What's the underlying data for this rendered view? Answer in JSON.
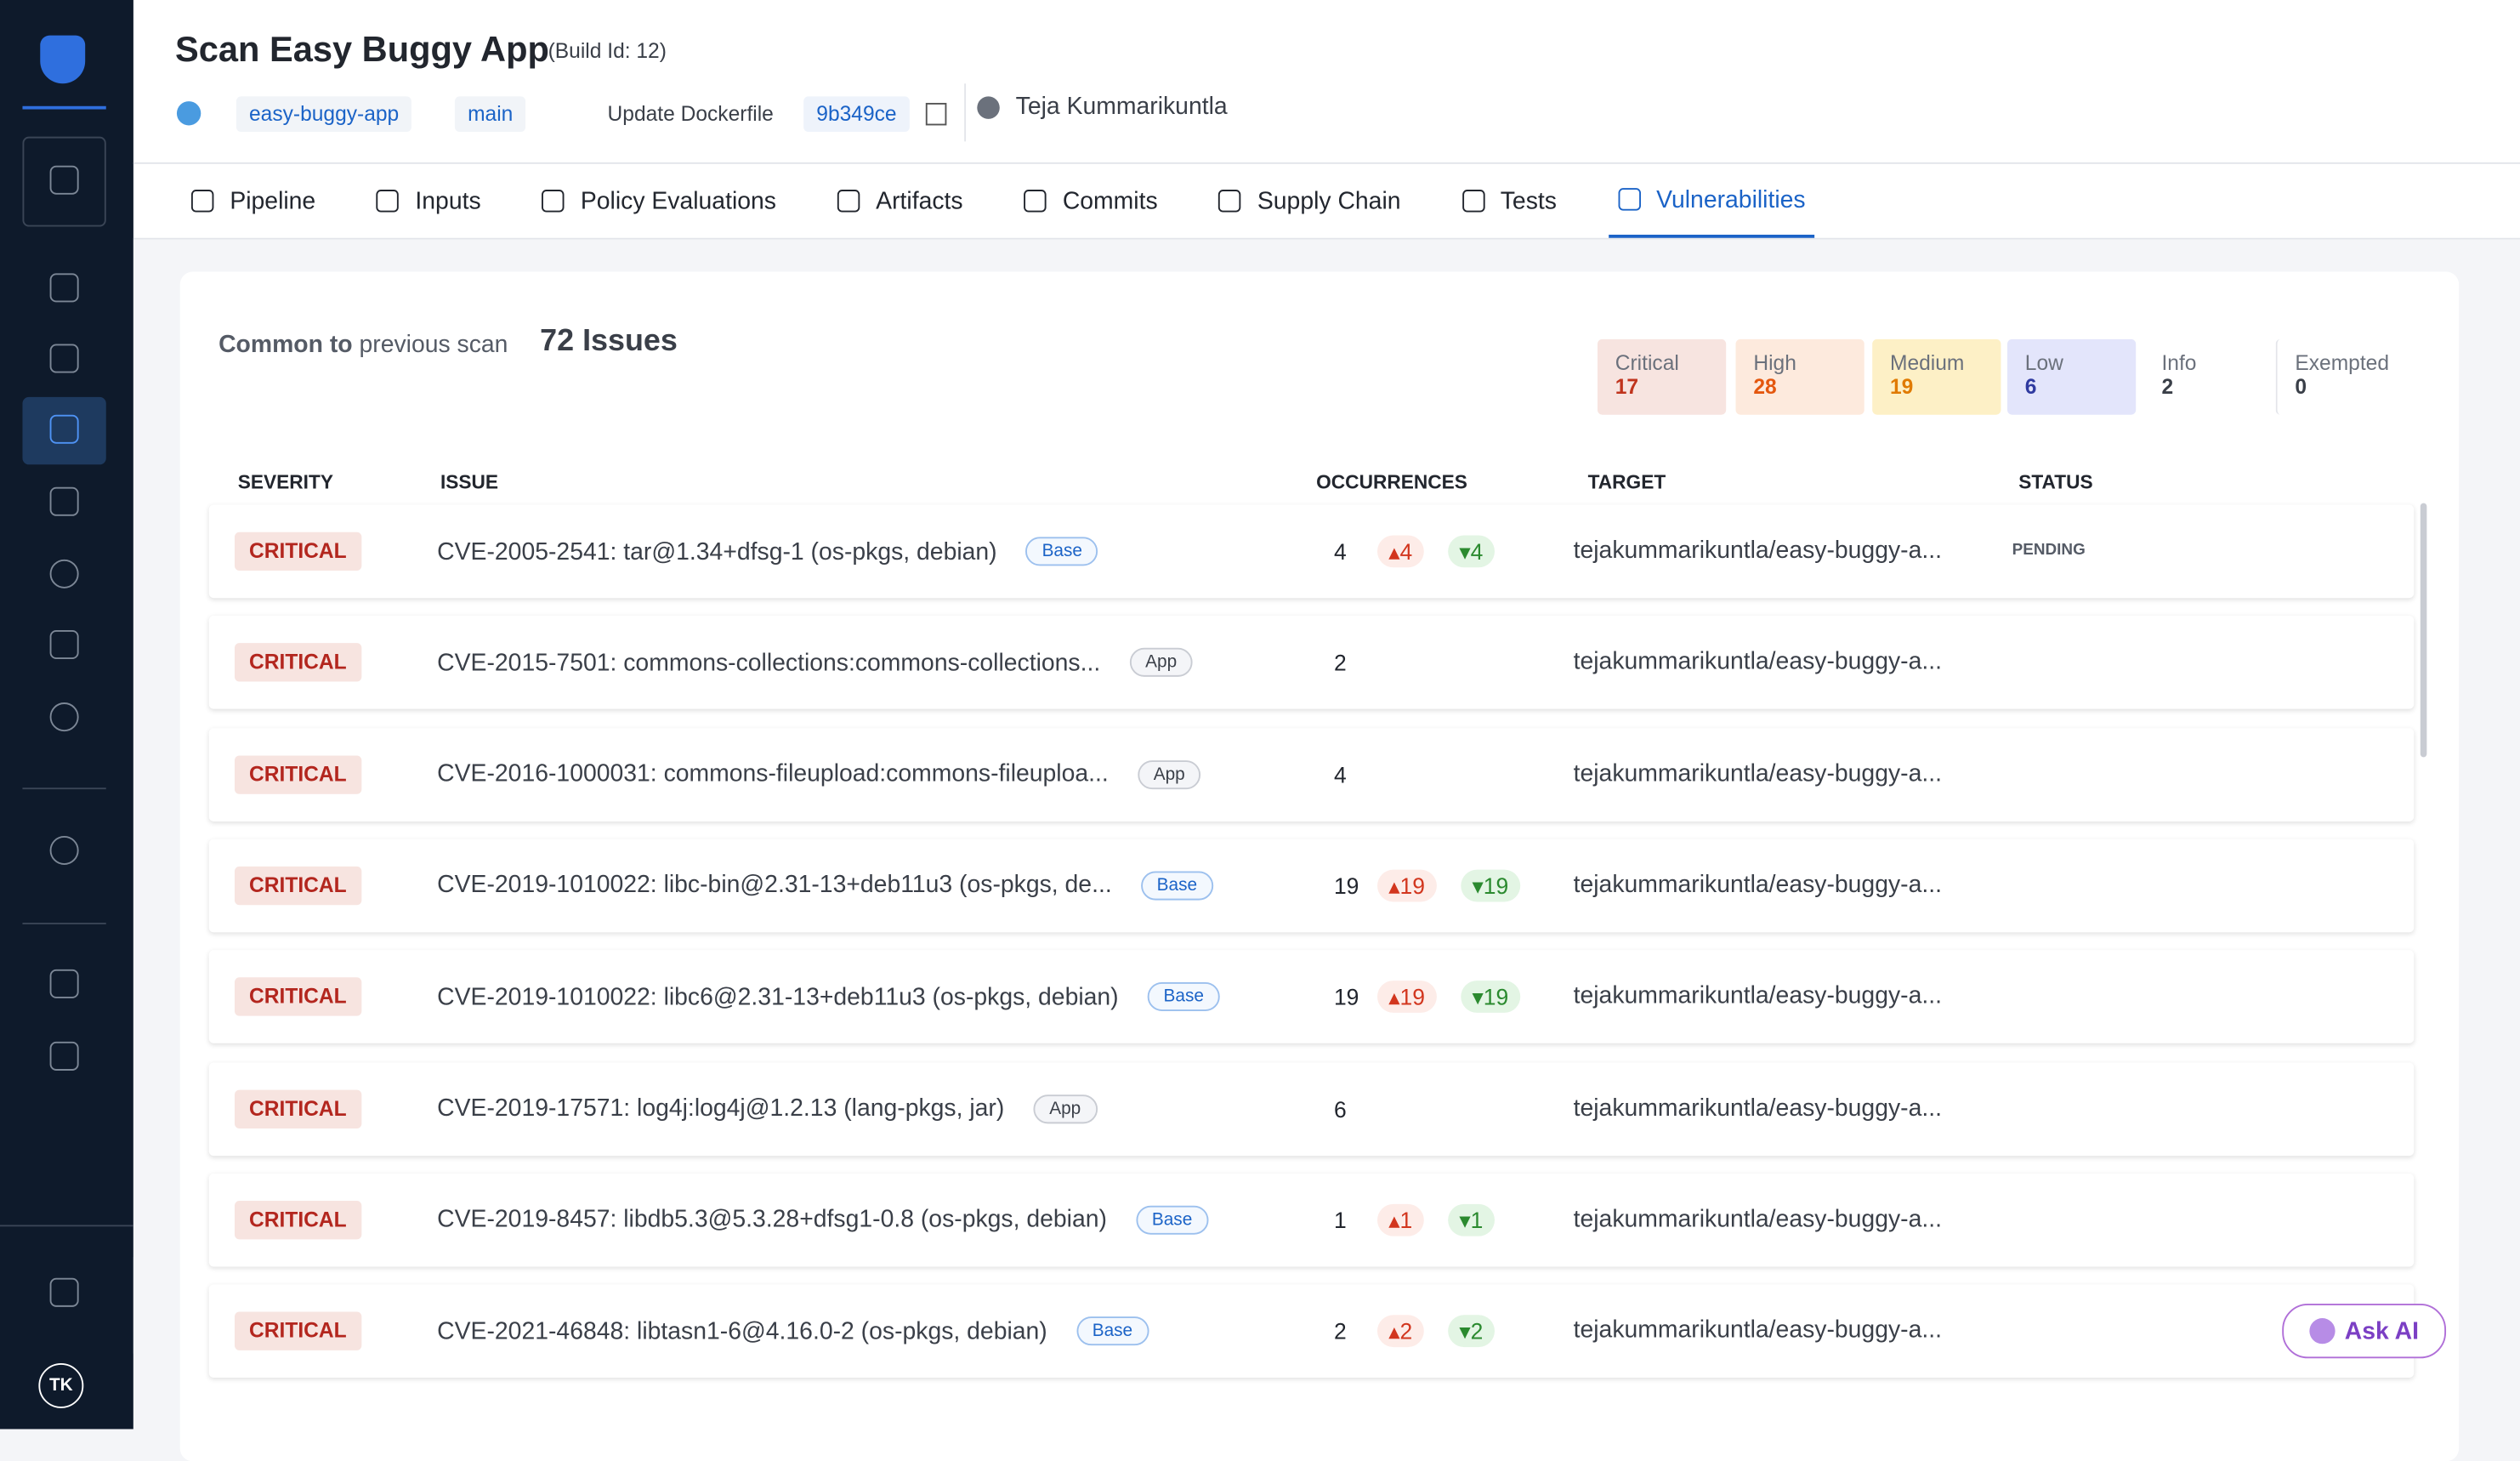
{
  "header": {
    "title": "Scan Easy Buggy App",
    "build": "(Build Id: 12)",
    "repo": "easy-buggy-app",
    "branch": "main",
    "commit_message": "Update Dockerfile",
    "commit": "9b349ce",
    "author": "Teja Kummarikuntla"
  },
  "tabs": [
    "Pipeline",
    "Inputs",
    "Policy Evaluations",
    "Artifacts",
    "Commits",
    "Supply Chain",
    "Tests",
    "Vulnerabilities"
  ],
  "active_tab": 7,
  "summary": {
    "common": "Common to",
    "previous": "previous scan",
    "issues": "72 Issues",
    "counts": [
      {
        "label": "Critical",
        "value": 17,
        "bg": "#f7e4e0",
        "color": "#c0341d"
      },
      {
        "label": "High",
        "value": 28,
        "bg": "#fdeadd",
        "color": "#e4570e"
      },
      {
        "label": "Medium",
        "value": 19,
        "bg": "#fdf0c6",
        "color": "#e07a00"
      },
      {
        "label": "Low",
        "value": 6,
        "bg": "#e3e5fb",
        "color": "#2f3aa0"
      },
      {
        "label": "Info",
        "value": 2
      },
      {
        "label": "Exempted",
        "value": 0
      }
    ]
  },
  "table": {
    "columns": [
      "SEVERITY",
      "ISSUE",
      "OCCURRENCES",
      "TARGET",
      "STATUS"
    ],
    "rows": [
      {
        "severity": "CRITICAL",
        "issue": "CVE-2005-2541: tar@1.34+dfsg-1 (os-pkgs, debian)",
        "tag": "Base",
        "occurrences": 4,
        "up": 4,
        "down": 4,
        "target": "tejakummarikuntla/easy-buggy-a...",
        "status": "PENDING"
      },
      {
        "severity": "CRITICAL",
        "issue": "CVE-2015-7501: commons-collections:commons-collections...",
        "tag": "App",
        "occurrences": 2,
        "target": "tejakummarikuntla/easy-buggy-a..."
      },
      {
        "severity": "CRITICAL",
        "issue": "CVE-2016-1000031: commons-fileupload:commons-fileuploa...",
        "tag": "App",
        "occurrences": 4,
        "target": "tejakummarikuntla/easy-buggy-a..."
      },
      {
        "severity": "CRITICAL",
        "issue": "CVE-2019-1010022: libc-bin@2.31-13+deb11u3 (os-pkgs, de...",
        "tag": "Base",
        "occurrences": 19,
        "up": 19,
        "down": 19,
        "target": "tejakummarikuntla/easy-buggy-a..."
      },
      {
        "severity": "CRITICAL",
        "issue": "CVE-2019-1010022: libc6@2.31-13+deb11u3 (os-pkgs, debian)",
        "tag": "Base",
        "occurrences": 19,
        "up": 19,
        "down": 19,
        "target": "tejakummarikuntla/easy-buggy-a..."
      },
      {
        "severity": "CRITICAL",
        "issue": "CVE-2019-17571: log4j:log4j@1.2.13 (lang-pkgs, jar)",
        "tag": "App",
        "occurrences": 6,
        "target": "tejakummarikuntla/easy-buggy-a..."
      },
      {
        "severity": "CRITICAL",
        "issue": "CVE-2019-8457: libdb5.3@5.3.28+dfsg1-0.8 (os-pkgs, debian)",
        "tag": "Base",
        "occurrences": 1,
        "up": 1,
        "down": 1,
        "target": "tejakummarikuntla/easy-buggy-a..."
      },
      {
        "severity": "CRITICAL",
        "issue": "CVE-2021-46848: libtasn1-6@4.16.0-2 (os-pkgs, debian)",
        "tag": "Base",
        "occurrences": 2,
        "up": 2,
        "down": 2,
        "target": "tejakummarikuntla/easy-buggy-a..."
      }
    ]
  },
  "ask_ai": "Ask AI",
  "user_initials": "TK"
}
